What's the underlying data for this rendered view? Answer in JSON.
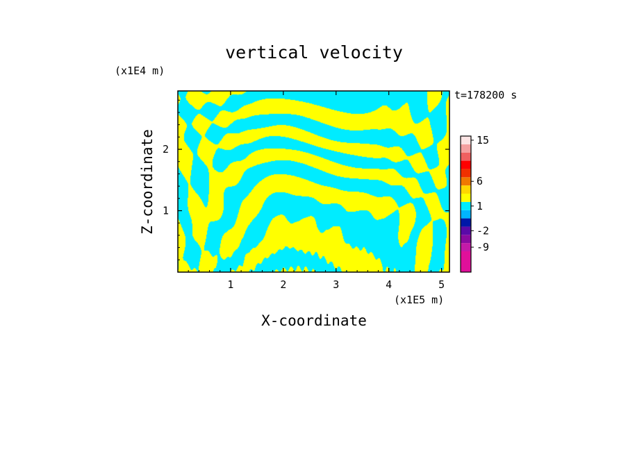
{
  "chart_data": {
    "type": "heatmap",
    "title": "vertical velocity",
    "xlabel": "X-coordinate",
    "ylabel": "Z-coordinate",
    "x_unit": "(x1E5 m)",
    "y_unit": "(x1E4 m)",
    "time_label": "t=178200 s",
    "xlim": [
      0.0,
      5.15
    ],
    "ylim": [
      0.0,
      2.95
    ],
    "x_ticks": [
      1,
      2,
      3,
      4,
      5
    ],
    "y_ticks": [
      1,
      2
    ],
    "grid": false,
    "field_colors": {
      "positive": "#ffff00",
      "negative": "#00ecff"
    },
    "colorbar": {
      "tick_labels": [
        "15",
        "6",
        "1",
        "-2",
        "-9"
      ],
      "colors": [
        "#e0109a",
        "#c41aa8",
        "#8b0aa0",
        "#5a0aa8",
        "#0018a8",
        "#00b4ff",
        "#00ecff",
        "#ffff00",
        "#ffd700",
        "#f07800",
        "#f03000",
        "#ff0000",
        "#f06060",
        "#f4a0a0",
        "#fce4e4"
      ]
    }
  }
}
